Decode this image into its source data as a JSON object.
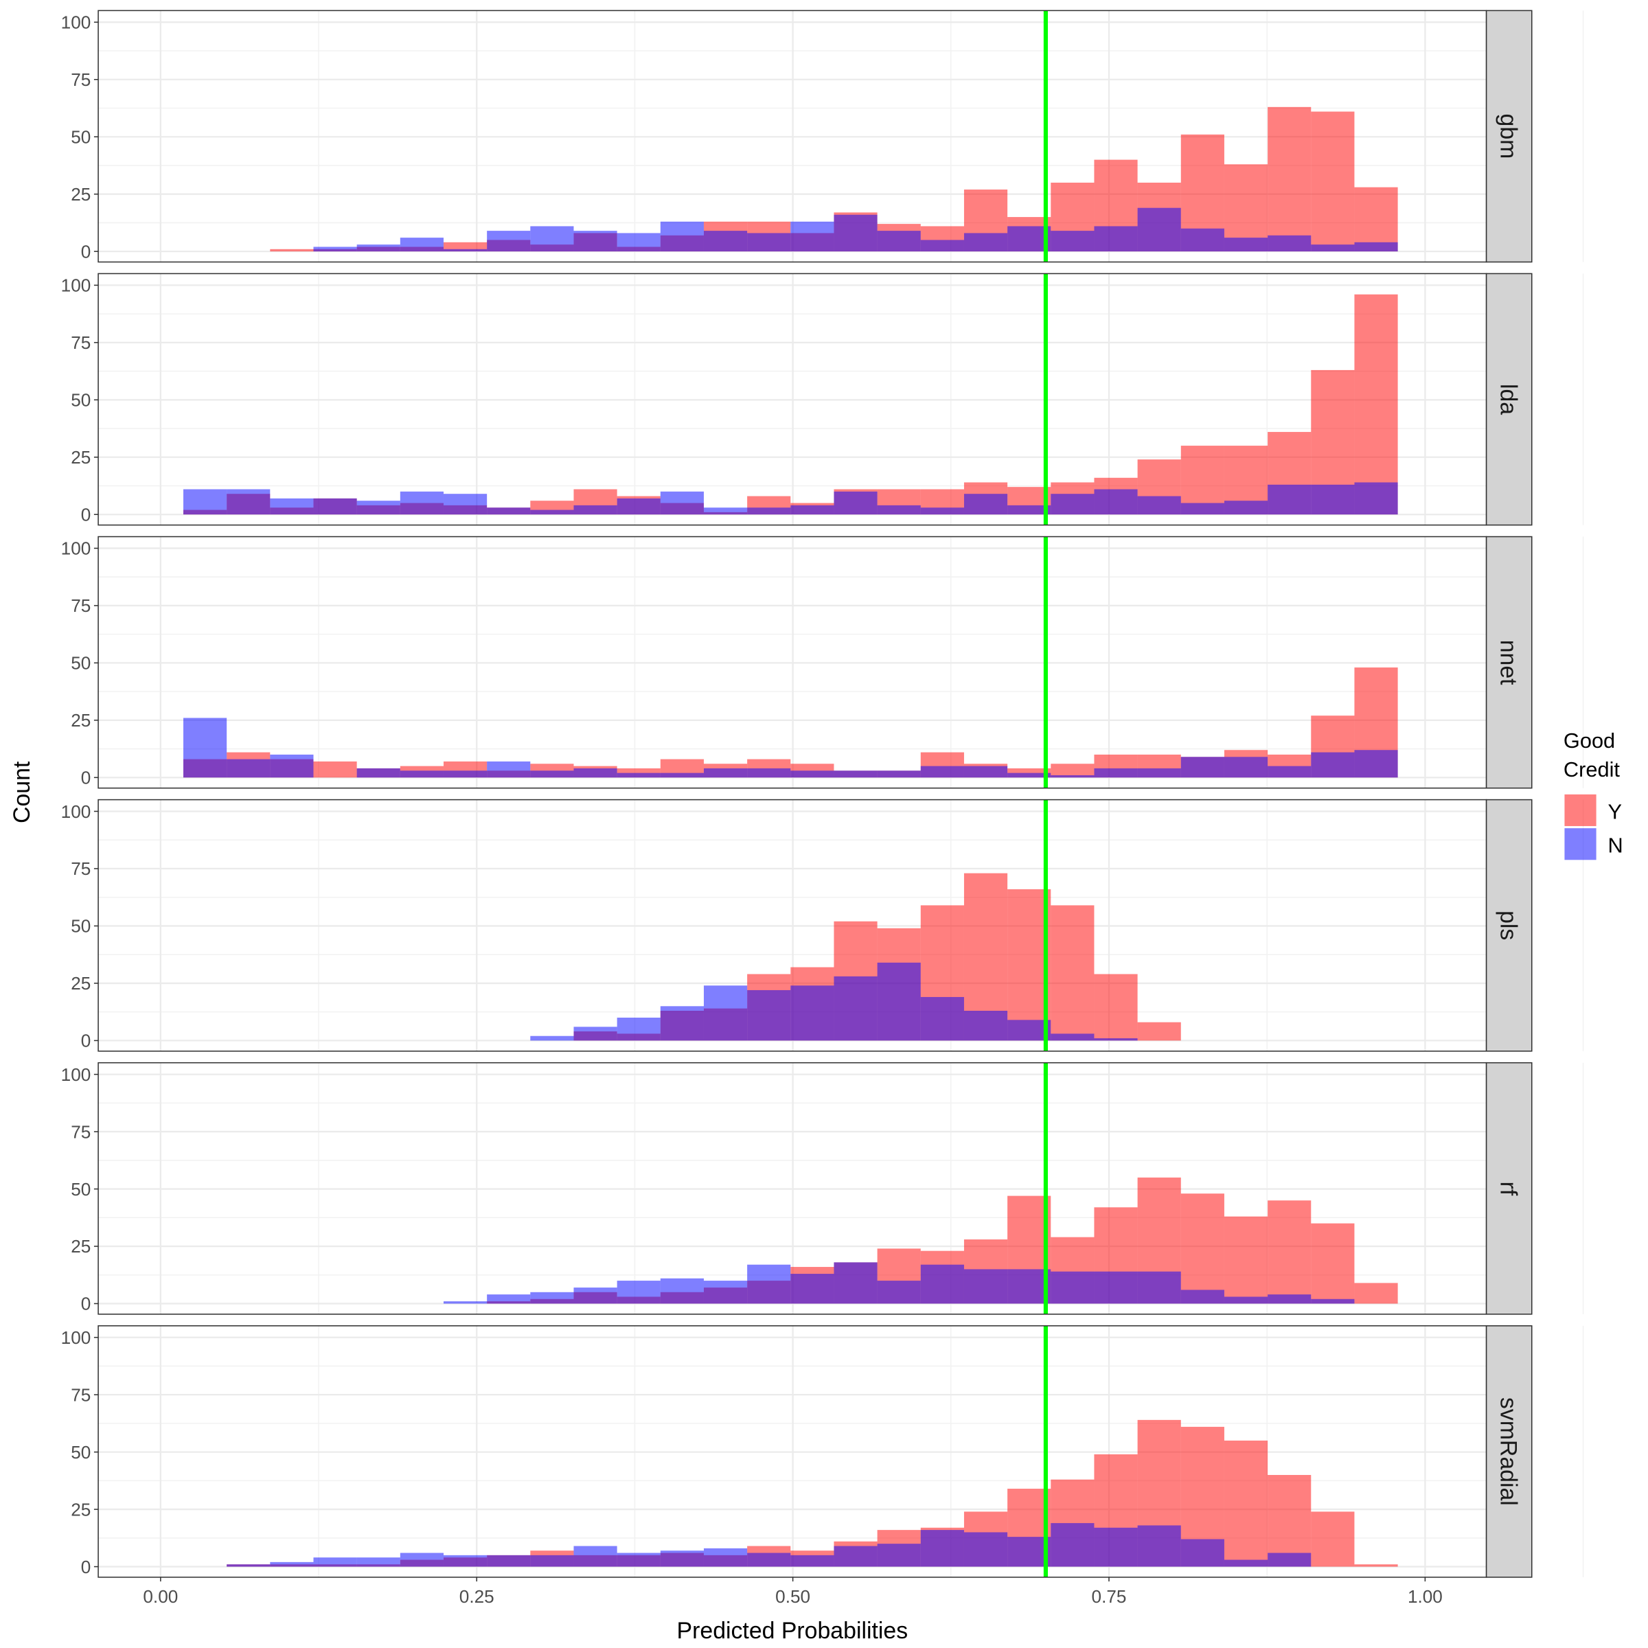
{
  "chart_data": {
    "type": "bar",
    "subtype": "faceted overlapping histogram",
    "xlabel": "Predicted Probabilities",
    "ylabel": "Count",
    "xlim": [
      0,
      1
    ],
    "ylim": [
      0,
      100
    ],
    "x_ticks": [
      "0.00",
      "0.25",
      "0.50",
      "0.75",
      "1.00"
    ],
    "y_ticks": [
      "0",
      "25",
      "50",
      "75",
      "100"
    ],
    "grid": true,
    "bin_start": 0.018,
    "bin_width": 0.0343,
    "threshold_line": {
      "x": 0.7,
      "color": "#00FF00"
    },
    "legend": {
      "title_lines": [
        "Good",
        "Credit"
      ],
      "position": "right",
      "entries": [
        {
          "label": "Y",
          "color": "#FF0000"
        },
        {
          "label": "N",
          "color": "#0000FF"
        }
      ]
    },
    "fill_opacity": 0.5,
    "panels": [
      {
        "name": "gbm",
        "Y": [
          0,
          0,
          1,
          1,
          2,
          2,
          4,
          5,
          3,
          8,
          2,
          7,
          13,
          13,
          8,
          17,
          12,
          11,
          27,
          15,
          30,
          40,
          30,
          51,
          38,
          63,
          61,
          28
        ],
        "N": [
          0,
          0,
          0,
          2,
          3,
          6,
          1,
          9,
          11,
          9,
          8,
          13,
          9,
          8,
          13,
          16,
          9,
          5,
          8,
          11,
          9,
          11,
          19,
          10,
          6,
          7,
          3,
          4
        ]
      },
      {
        "name": "lda",
        "Y": [
          2,
          9,
          3,
          7,
          4,
          5,
          4,
          3,
          6,
          11,
          8,
          5,
          1,
          8,
          5,
          11,
          11,
          11,
          14,
          12,
          14,
          16,
          24,
          30,
          30,
          36,
          63,
          96
        ],
        "N": [
          11,
          11,
          7,
          7,
          6,
          10,
          9,
          3,
          2,
          4,
          7,
          10,
          3,
          3,
          4,
          10,
          4,
          3,
          9,
          4,
          9,
          11,
          8,
          5,
          6,
          13,
          13,
          14
        ]
      },
      {
        "name": "nnet",
        "Y": [
          8,
          11,
          8,
          7,
          4,
          5,
          7,
          3,
          6,
          5,
          4,
          8,
          6,
          8,
          6,
          3,
          3,
          11,
          6,
          4,
          6,
          10,
          10,
          9,
          12,
          10,
          27,
          48
        ],
        "N": [
          26,
          8,
          10,
          0,
          4,
          3,
          3,
          7,
          3,
          4,
          2,
          2,
          4,
          4,
          3,
          3,
          3,
          5,
          5,
          2,
          1,
          4,
          4,
          9,
          9,
          5,
          11,
          12
        ]
      },
      {
        "name": "pls",
        "Y": [
          0,
          0,
          0,
          0,
          0,
          0,
          0,
          0,
          0,
          4,
          3,
          13,
          14,
          29,
          32,
          52,
          49,
          59,
          73,
          66,
          59,
          29,
          8,
          0,
          0,
          0,
          0,
          0
        ],
        "N": [
          0,
          0,
          0,
          0,
          0,
          0,
          0,
          0,
          2,
          6,
          10,
          15,
          24,
          22,
          24,
          28,
          34,
          19,
          13,
          9,
          3,
          1,
          0,
          0,
          0,
          0,
          0,
          0
        ]
      },
      {
        "name": "rf",
        "Y": [
          0,
          0,
          0,
          0,
          0,
          0,
          0,
          1,
          2,
          5,
          3,
          5,
          7,
          10,
          16,
          18,
          24,
          23,
          28,
          47,
          29,
          42,
          55,
          48,
          38,
          45,
          35,
          9
        ],
        "N": [
          0,
          0,
          0,
          0,
          0,
          0,
          1,
          4,
          5,
          7,
          10,
          11,
          10,
          17,
          13,
          18,
          10,
          17,
          15,
          15,
          14,
          14,
          14,
          6,
          3,
          4,
          2,
          0
        ]
      },
      {
        "name": "svmRadial",
        "Y": [
          0,
          1,
          1,
          1,
          1,
          3,
          4,
          5,
          7,
          5,
          5,
          6,
          5,
          9,
          7,
          11,
          16,
          17,
          24,
          34,
          38,
          49,
          64,
          61,
          55,
          40,
          24,
          1
        ],
        "N": [
          0,
          1,
          2,
          4,
          4,
          6,
          5,
          5,
          5,
          9,
          6,
          7,
          8,
          6,
          5,
          9,
          10,
          16,
          15,
          13,
          19,
          17,
          18,
          12,
          3,
          6,
          0,
          0
        ]
      }
    ]
  }
}
